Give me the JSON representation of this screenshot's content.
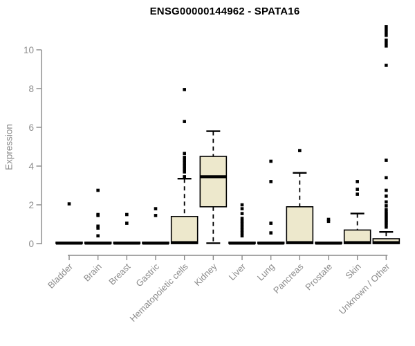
{
  "chart_data": {
    "type": "boxplot",
    "title": "ENSG00000144962 - SPATA16",
    "ylabel": "Expression",
    "xlabel": "",
    "ylim": [
      0,
      11.3
    ],
    "yticks": [
      0,
      2,
      4,
      6,
      8,
      10
    ],
    "grid": false,
    "legend": "none",
    "colors": {
      "box_fill": "#EDE8CC",
      "box_stroke": "#000000",
      "axis": "#898989",
      "tick_label": "#8b8b8b",
      "title": "#000000"
    },
    "categories": [
      "Bladder",
      "Brain",
      "Breast",
      "Gastric",
      "Hematopoietic cells",
      "Kidney",
      "Liver",
      "Lung",
      "Pancreas",
      "Prostate",
      "Skin",
      "Unknown / Other"
    ],
    "series": [
      {
        "category": "Bladder",
        "q1": 0,
        "median": 0.02,
        "q3": 0.07,
        "whisker_low": null,
        "whisker_high": null,
        "outliers": [
          2.05
        ]
      },
      {
        "category": "Brain",
        "q1": 0,
        "median": 0.02,
        "q3": 0.07,
        "whisker_low": null,
        "whisker_high": null,
        "outliers": [
          2.75,
          1.5,
          1.45,
          0.9,
          0.8,
          0.4
        ]
      },
      {
        "category": "Breast",
        "q1": 0,
        "median": 0.02,
        "q3": 0.07,
        "whisker_low": null,
        "whisker_high": null,
        "outliers": [
          1.5,
          1.05
        ]
      },
      {
        "category": "Gastric",
        "q1": 0,
        "median": 0.02,
        "q3": 0.07,
        "whisker_low": null,
        "whisker_high": null,
        "outliers": [
          1.8,
          1.45
        ]
      },
      {
        "category": "Hematopoietic cells",
        "q1": 0,
        "median": 0.05,
        "q3": 1.4,
        "whisker_low": null,
        "whisker_high": 3.35,
        "outliers": [
          7.95,
          6.3,
          4.65,
          4.45,
          4.3,
          4.15,
          4.0,
          3.85,
          3.7,
          3.45
        ]
      },
      {
        "category": "Kidney",
        "q1": 1.9,
        "median": 3.45,
        "q3": 4.5,
        "whisker_low": 0.02,
        "whisker_high": 5.8,
        "outliers": []
      },
      {
        "category": "Liver",
        "q1": 0,
        "median": 0.02,
        "q3": 0.07,
        "whisker_low": null,
        "whisker_high": null,
        "outliers": [
          2.0,
          1.8,
          1.55,
          1.3,
          1.15,
          1.0,
          0.85,
          0.7,
          0.55,
          0.4
        ]
      },
      {
        "category": "Lung",
        "q1": 0,
        "median": 0.02,
        "q3": 0.07,
        "whisker_low": null,
        "whisker_high": null,
        "outliers": [
          4.25,
          3.2,
          1.05,
          0.55
        ]
      },
      {
        "category": "Pancreas",
        "q1": 0,
        "median": 0.05,
        "q3": 1.9,
        "whisker_low": null,
        "whisker_high": 3.65,
        "outliers": [
          4.8
        ]
      },
      {
        "category": "Prostate",
        "q1": 0,
        "median": 0.02,
        "q3": 0.07,
        "whisker_low": null,
        "whisker_high": null,
        "outliers": [
          1.25,
          1.15
        ]
      },
      {
        "category": "Skin",
        "q1": 0,
        "median": 0.05,
        "q3": 0.7,
        "whisker_low": null,
        "whisker_high": 1.55,
        "outliers": [
          3.2,
          2.8,
          2.55
        ]
      },
      {
        "category": "Unknown / Other",
        "q1": 0,
        "median": 0.05,
        "q3": 0.25,
        "whisker_low": null,
        "whisker_high": 0.6,
        "outliers": [
          11.2,
          11.05,
          10.9,
          10.75,
          10.5,
          10.35,
          10.2,
          9.2,
          4.3,
          3.4,
          2.75,
          2.45,
          2.15,
          1.95,
          1.75,
          1.65,
          1.55,
          1.5,
          1.4,
          1.35,
          1.25,
          1.2,
          1.1,
          1.05,
          0.95,
          0.85
        ]
      }
    ]
  }
}
